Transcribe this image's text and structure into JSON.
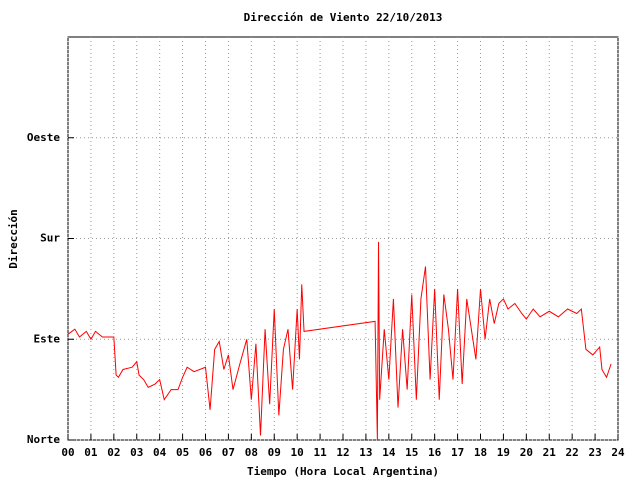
{
  "chart_data": {
    "type": "line",
    "title": "Dirección de Viento 22/10/2013",
    "xlabel": "Tiempo (Hora Local Argentina)",
    "ylabel": "Dirección",
    "xlim": [
      0,
      24
    ],
    "ylim": [
      0,
      360
    ],
    "grid": true,
    "xticks": [
      {
        "value": 0,
        "label": "00"
      },
      {
        "value": 1,
        "label": "01"
      },
      {
        "value": 2,
        "label": "02"
      },
      {
        "value": 3,
        "label": "03"
      },
      {
        "value": 4,
        "label": "04"
      },
      {
        "value": 5,
        "label": "05"
      },
      {
        "value": 6,
        "label": "06"
      },
      {
        "value": 7,
        "label": "07"
      },
      {
        "value": 8,
        "label": "08"
      },
      {
        "value": 9,
        "label": "09"
      },
      {
        "value": 10,
        "label": "10"
      },
      {
        "value": 11,
        "label": "11"
      },
      {
        "value": 12,
        "label": "12"
      },
      {
        "value": 13,
        "label": "13"
      },
      {
        "value": 14,
        "label": "14"
      },
      {
        "value": 15,
        "label": "15"
      },
      {
        "value": 16,
        "label": "16"
      },
      {
        "value": 17,
        "label": "17"
      },
      {
        "value": 18,
        "label": "18"
      },
      {
        "value": 19,
        "label": "19"
      },
      {
        "value": 20,
        "label": "20"
      },
      {
        "value": 21,
        "label": "21"
      },
      {
        "value": 22,
        "label": "22"
      },
      {
        "value": 23,
        "label": "23"
      },
      {
        "value": 24,
        "label": "24"
      }
    ],
    "yticks": [
      {
        "value": 0,
        "label": "Norte"
      },
      {
        "value": 90,
        "label": "Este"
      },
      {
        "value": 180,
        "label": "Sur"
      },
      {
        "value": 270,
        "label": "Oeste"
      }
    ],
    "series": [
      {
        "color": "#ff0000",
        "x": [
          0.0,
          0.3,
          0.5,
          0.8,
          1.0,
          1.2,
          1.5,
          2.0,
          2.1,
          2.2,
          2.4,
          2.8,
          3.0,
          3.1,
          3.3,
          3.5,
          3.8,
          4.0,
          4.2,
          4.5,
          4.8,
          5.0,
          5.2,
          5.5,
          6.0,
          6.2,
          6.4,
          6.6,
          6.8,
          7.0,
          7.2,
          7.5,
          7.8,
          8.0,
          8.2,
          8.4,
          8.6,
          8.8,
          9.0,
          9.2,
          9.4,
          9.6,
          9.8,
          10.0,
          10.1,
          10.2,
          10.3,
          13.4,
          13.5,
          13.55,
          13.6,
          13.8,
          14.0,
          14.2,
          14.4,
          14.6,
          14.8,
          15.0,
          15.2,
          15.4,
          15.6,
          15.8,
          16.0,
          16.2,
          16.4,
          16.6,
          16.8,
          17.0,
          17.2,
          17.4,
          17.6,
          17.8,
          18.0,
          18.2,
          18.4,
          18.6,
          18.8,
          19.0,
          19.2,
          19.5,
          19.8,
          20.0,
          20.3,
          20.6,
          21.0,
          21.4,
          21.8,
          22.2,
          22.4,
          22.6,
          22.9,
          23.2,
          23.3,
          23.5,
          23.7
        ],
        "values": [
          94.5,
          99,
          92,
          97,
          90,
          97,
          92,
          92,
          58,
          56,
          63,
          65,
          70,
          58,
          54,
          47,
          50,
          54,
          36,
          45,
          45,
          56,
          65,
          61,
          65,
          27,
          81,
          88,
          63,
          76,
          45,
          68,
          90,
          36,
          86,
          4,
          99,
          32,
          117,
          22,
          81,
          99,
          45,
          117,
          72,
          139,
          97,
          106,
          0,
          177,
          36,
          99,
          54,
          126,
          29,
          99,
          45,
          130,
          36,
          126,
          155,
          54,
          135,
          36,
          130,
          99,
          54,
          135,
          50,
          126,
          99,
          72,
          135,
          90,
          126,
          104,
          122,
          126,
          117,
          122,
          113,
          108,
          117,
          110,
          115,
          110,
          117,
          113,
          117,
          81,
          76,
          83,
          63,
          56,
          68
        ]
      }
    ]
  }
}
